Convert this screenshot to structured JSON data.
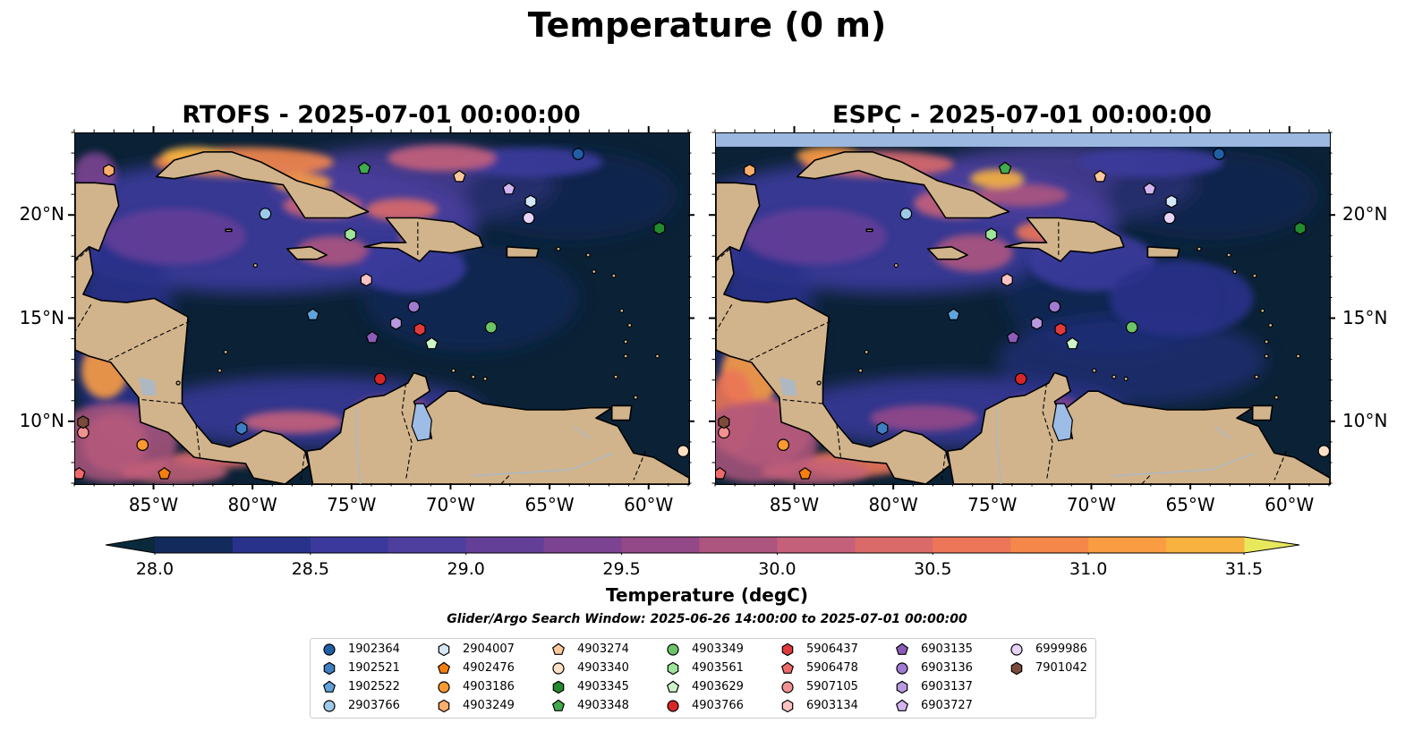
{
  "figure": {
    "suptitle": "Temperature (0 m)",
    "search_window": "Glider/Argo Search Window: 2025-06-26 14:00:00 to 2025-07-01 00:00:00"
  },
  "panels": [
    {
      "title": "RTOFS - 2025-07-01 00:00:00"
    },
    {
      "title": "ESPC - 2025-07-01 00:00:00"
    }
  ],
  "axes": {
    "lon_labels": [
      "85°W",
      "80°W",
      "75°W",
      "70°W",
      "65°W",
      "60°W"
    ],
    "lon_values": [
      -85,
      -80,
      -75,
      -70,
      -65,
      -60
    ],
    "lat_labels": [
      "10°N",
      "15°N",
      "20°N"
    ],
    "lat_values": [
      10,
      15,
      20
    ],
    "lon_range": [
      -89,
      -58
    ],
    "lat_range": [
      7,
      24
    ]
  },
  "colorbar": {
    "label": "Temperature (degC)",
    "min": 28.0,
    "max": 31.5,
    "tick_labels": [
      "28.0",
      "28.5",
      "29.0",
      "29.5",
      "30.0",
      "30.5",
      "31.0",
      "31.5"
    ],
    "tick_values": [
      28.0,
      28.5,
      29.0,
      29.5,
      30.0,
      30.5,
      31.0,
      31.5
    ],
    "extend": "both",
    "colors": [
      "#0a2a3b",
      "#122a5c",
      "#28328a",
      "#3b3a9c",
      "#4e3f9e",
      "#643f98",
      "#7b4391",
      "#934888",
      "#ad557e",
      "#c5607a",
      "#da6a6a",
      "#ec7657",
      "#f5874a",
      "#f99c42",
      "#f7b23f",
      "#f4cb44",
      "#e8e85c"
    ]
  },
  "map_style": {
    "ocean": "#0b2236",
    "land": "#d2b48c",
    "lake": "#9dbce6",
    "river": "#a9b8c8",
    "no_data_band_espc": "#9cb8e0"
  },
  "legend": {
    "items": [
      {
        "id": "1902364",
        "marker": "circle",
        "color": "#1f5fa6"
      },
      {
        "id": "1902521",
        "marker": "hexagon",
        "color": "#3d7fc1"
      },
      {
        "id": "1902522",
        "marker": "pentagon",
        "color": "#5ea3dc"
      },
      {
        "id": "2903766",
        "marker": "circle",
        "color": "#9ecae9"
      },
      {
        "id": "2904007",
        "marker": "hexagon",
        "color": "#d4e7f7"
      },
      {
        "id": "4902476",
        "marker": "pentagon",
        "color": "#f47f0e"
      },
      {
        "id": "4903186",
        "marker": "circle",
        "color": "#fb9a32"
      },
      {
        "id": "4903249",
        "marker": "hexagon",
        "color": "#fdae6b"
      },
      {
        "id": "4903274",
        "marker": "pentagon",
        "color": "#fdc89a"
      },
      {
        "id": "4903340",
        "marker": "circle",
        "color": "#fde0c5"
      },
      {
        "id": "4903345",
        "marker": "hexagon",
        "color": "#238b2e"
      },
      {
        "id": "4903348",
        "marker": "pentagon",
        "color": "#41ab4d"
      },
      {
        "id": "4903349",
        "marker": "circle",
        "color": "#6cc466"
      },
      {
        "id": "4903561",
        "marker": "hexagon",
        "color": "#9ee49a"
      },
      {
        "id": "4903629",
        "marker": "pentagon",
        "color": "#ccf5c7"
      },
      {
        "id": "4903766",
        "marker": "circle",
        "color": "#d62728"
      },
      {
        "id": "5906437",
        "marker": "hexagon",
        "color": "#e03a3a"
      },
      {
        "id": "5906478",
        "marker": "pentagon",
        "color": "#ee6a6a"
      },
      {
        "id": "5907105",
        "marker": "circle",
        "color": "#f39191"
      },
      {
        "id": "6903134",
        "marker": "hexagon",
        "color": "#fbc2c2"
      },
      {
        "id": "6903135",
        "marker": "pentagon",
        "color": "#8c5cb8"
      },
      {
        "id": "6903136",
        "marker": "circle",
        "color": "#a07bd0"
      },
      {
        "id": "6903137",
        "marker": "hexagon",
        "color": "#b99ae0"
      },
      {
        "id": "6903727",
        "marker": "pentagon",
        "color": "#d2b5ef"
      },
      {
        "id": "6999986",
        "marker": "circle",
        "color": "#e8d3fb"
      },
      {
        "id": "7901042",
        "marker": "hexagon",
        "color": "#7a4b3a"
      }
    ]
  },
  "floats": [
    {
      "id": "1902364",
      "lon": -63.6,
      "lat": 23.0
    },
    {
      "id": "1902521",
      "lon": -80.6,
      "lat": 9.7
    },
    {
      "id": "1902522",
      "lon": -77.0,
      "lat": 15.2
    },
    {
      "id": "2903766",
      "lon": -79.4,
      "lat": 20.1
    },
    {
      "id": "2904007",
      "lon": -66.0,
      "lat": 20.7
    },
    {
      "id": "4902476",
      "lon": -84.5,
      "lat": 7.5
    },
    {
      "id": "4903186",
      "lon": -85.6,
      "lat": 8.9
    },
    {
      "id": "4903249",
      "lon": -87.3,
      "lat": 22.2
    },
    {
      "id": "4903274",
      "lon": -69.6,
      "lat": 21.9
    },
    {
      "id": "4903340",
      "lon": -58.3,
      "lat": 8.6
    },
    {
      "id": "4903345",
      "lon": -59.5,
      "lat": 19.4
    },
    {
      "id": "4903348",
      "lon": -74.4,
      "lat": 22.3
    },
    {
      "id": "4903349",
      "lon": -68.0,
      "lat": 14.6
    },
    {
      "id": "4903561",
      "lon": -75.1,
      "lat": 19.1
    },
    {
      "id": "4903629",
      "lon": -71.0,
      "lat": 13.8
    },
    {
      "id": "4903766",
      "lon": -73.6,
      "lat": 12.1
    },
    {
      "id": "5906437",
      "lon": -71.6,
      "lat": 14.5
    },
    {
      "id": "5906478",
      "lon": -88.8,
      "lat": 7.5
    },
    {
      "id": "5907105",
      "lon": -88.6,
      "lat": 9.5
    },
    {
      "id": "6903134",
      "lon": -74.3,
      "lat": 16.9
    },
    {
      "id": "6903135",
      "lon": -74.0,
      "lat": 14.1
    },
    {
      "id": "6903136",
      "lon": -71.9,
      "lat": 15.6
    },
    {
      "id": "6903137",
      "lon": -72.8,
      "lat": 14.8
    },
    {
      "id": "6903727",
      "lon": -67.1,
      "lat": 21.3
    },
    {
      "id": "6999986",
      "lon": -66.1,
      "lat": 19.9
    },
    {
      "id": "7901042",
      "lon": -88.6,
      "lat": 10.0
    }
  ]
}
